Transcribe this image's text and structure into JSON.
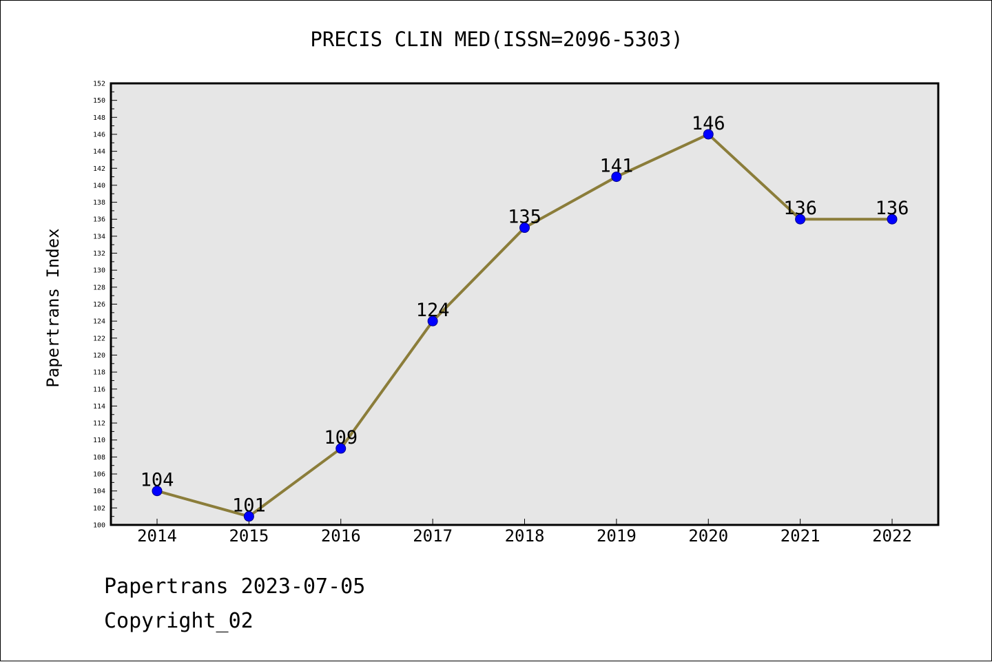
{
  "chart_data": {
    "type": "line",
    "title": "PRECIS CLIN MED(ISSN=2096-5303)",
    "xlabel": "",
    "ylabel": "Papertrans Index",
    "categories": [
      "2014",
      "2015",
      "2016",
      "2017",
      "2018",
      "2019",
      "2020",
      "2021",
      "2022"
    ],
    "series": [
      {
        "values": [
          104,
          101,
          109,
          124,
          135,
          141,
          146,
          136,
          136
        ]
      }
    ],
    "ylim": [
      100,
      152
    ],
    "yticks": [
      100,
      102,
      104,
      106,
      108,
      110,
      112,
      114,
      116,
      118,
      120,
      122,
      124,
      126,
      128,
      130,
      132,
      134,
      136,
      138,
      140,
      142,
      144,
      146,
      148,
      150,
      152
    ],
    "grid": false,
    "legend": "none",
    "colors": {
      "line": "#8b7d3a",
      "marker": "#0000ff",
      "plot_background": "#e6e6e6"
    }
  },
  "footer": {
    "date_text": "Papertrans 2023-07-05",
    "copyright_text": "Copyright_02"
  }
}
